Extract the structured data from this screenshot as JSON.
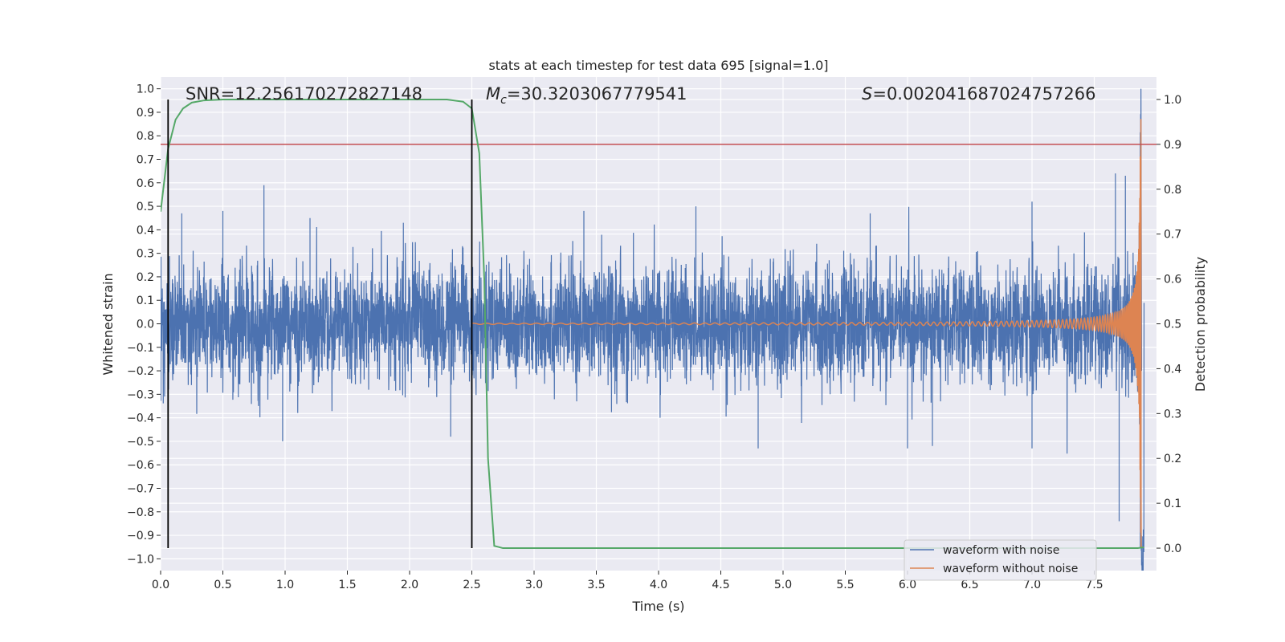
{
  "chart_data": {
    "type": "line",
    "title": "stats at each timestep for test data 695 [signal=1.0]",
    "xlabel": "Time (s)",
    "ylabel_left": "Whitened strain",
    "ylabel_right": "Detection probability",
    "xlim": [
      0.0,
      8.0
    ],
    "ylim_left": [
      -1.05,
      1.05
    ],
    "ylim_right": [
      -0.05,
      1.05
    ],
    "grid": true,
    "xticks": [
      0.0,
      0.5,
      1.0,
      1.5,
      2.0,
      2.5,
      3.0,
      3.5,
      4.0,
      4.5,
      5.0,
      5.5,
      6.0,
      6.5,
      7.0,
      7.5
    ],
    "xtick_labels": [
      "0.0",
      "0.5",
      "1.0",
      "1.5",
      "2.0",
      "2.5",
      "3.0",
      "3.5",
      "4.0",
      "4.5",
      "5.0",
      "5.5",
      "6.0",
      "6.5",
      "7.0",
      "7.5"
    ],
    "yticks_left": [
      1.0,
      0.9,
      0.8,
      0.7,
      0.6,
      0.5,
      0.4,
      0.3,
      0.2,
      0.1,
      0.0,
      -0.1,
      -0.2,
      -0.3,
      -0.4,
      -0.5,
      -0.6,
      -0.7,
      -0.8,
      -0.9,
      -1.0
    ],
    "ytick_labels_left": [
      "1.0",
      "0.9",
      "0.8",
      "0.7",
      "0.6",
      "0.5",
      "0.4",
      "0.3",
      "0.2",
      "0.1",
      "0.0",
      "−0.1",
      "−0.2",
      "−0.3",
      "−0.4",
      "−0.5",
      "−0.6",
      "−0.7",
      "−0.8",
      "−0.9",
      "−1.0"
    ],
    "yticks_right": [
      1.0,
      0.9,
      0.8,
      0.7,
      0.6,
      0.5,
      0.4,
      0.3,
      0.2,
      0.1,
      0.0
    ],
    "ytick_labels_right": [
      "1.0",
      "0.9",
      "0.8",
      "0.7",
      "0.6",
      "0.5",
      "0.4",
      "0.3",
      "0.2",
      "0.1",
      "0.0"
    ],
    "annotations": {
      "snr": "SNR=12.256170272827148",
      "mc_symbol": "M",
      "mc_subscript": "c",
      "mc_value": "=30.3203067779541",
      "s_symbol": "S",
      "s_value": "=0.002041687024757266"
    },
    "vertical_lines_x": [
      0.06,
      2.5
    ],
    "threshold_probability": 0.9,
    "noise": {
      "name": "waveform with noise",
      "color": "#4c72b0",
      "t_end": 7.9,
      "base_amplitude": 0.28,
      "spikes": [
        {
          "t": 0.83,
          "v": 0.59
        },
        {
          "t": 0.17,
          "v": 0.47
        },
        {
          "t": 0.5,
          "v": 0.48
        },
        {
          "t": 1.2,
          "v": 0.45
        },
        {
          "t": 1.95,
          "v": 0.43
        },
        {
          "t": 3.4,
          "v": 0.48
        },
        {
          "t": 4.3,
          "v": 0.5
        },
        {
          "t": 5.7,
          "v": 0.47
        },
        {
          "t": 7.0,
          "v": 0.52
        },
        {
          "t": 7.67,
          "v": 0.64
        },
        {
          "t": 7.75,
          "v": 0.63
        },
        {
          "t": 0.98,
          "v": -0.5
        },
        {
          "t": 2.33,
          "v": -0.48
        },
        {
          "t": 4.8,
          "v": -0.53
        },
        {
          "t": 6.0,
          "v": -0.53
        },
        {
          "t": 6.2,
          "v": -0.52
        },
        {
          "t": 7.0,
          "v": -0.53
        },
        {
          "t": 7.7,
          "v": -0.84
        }
      ]
    },
    "signal": {
      "name": "waveform without noise",
      "color": "#dd8452",
      "merger_t": 7.88,
      "peak_amplitude": 0.95
    },
    "probability": {
      "name": "detection probability",
      "color": "#55a868",
      "t": [
        0.0,
        0.06,
        0.12,
        0.18,
        0.25,
        0.35,
        0.5,
        1.0,
        1.5,
        2.0,
        2.3,
        2.43,
        2.5,
        2.56,
        2.6,
        2.63,
        2.68,
        2.75,
        3.0,
        7.5,
        7.85,
        7.9
      ],
      "p": [
        0.75,
        0.89,
        0.955,
        0.98,
        0.993,
        0.998,
        1.0,
        1.0,
        1.0,
        1.0,
        1.0,
        0.995,
        0.98,
        0.88,
        0.6,
        0.2,
        0.005,
        0.0,
        0.0,
        0.0,
        0.0,
        0.002
      ]
    },
    "threshold_color": "#c44e52",
    "legend": {
      "position": "lower-right",
      "entries": [
        "waveform with noise",
        "waveform without noise"
      ]
    }
  }
}
